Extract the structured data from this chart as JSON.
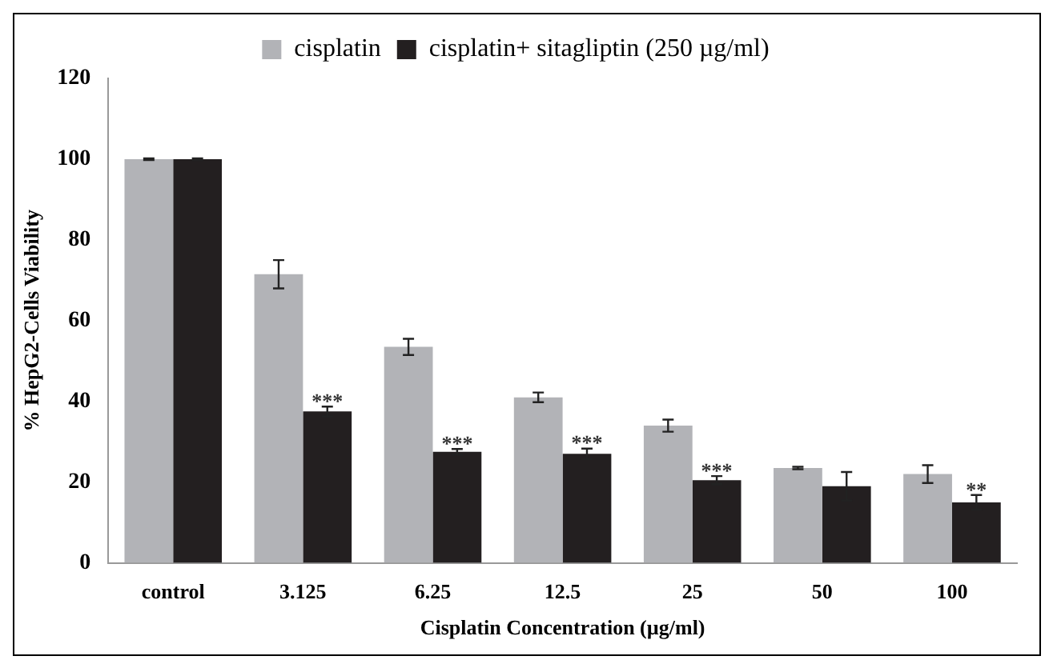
{
  "chart_data": {
    "type": "bar",
    "xlabel": "Cisplatin Concentration (µg/ml)",
    "ylabel": "% HepG2-Cells Viability",
    "categories": [
      "control",
      "3.125",
      "6.25",
      "12.5",
      "25",
      "50",
      "100"
    ],
    "series": [
      {
        "name": "cisplatin",
        "color": "#b2b3b7",
        "values": [
          100,
          71.5,
          53.5,
          41,
          34,
          23.5,
          22
        ],
        "errors": [
          0.2,
          3.5,
          2,
          1.2,
          1.5,
          0.3,
          2.2
        ]
      },
      {
        "name": "cisplatin+ sitagliptin (250 µg/ml)",
        "color": "#231f20",
        "values": [
          100,
          37.5,
          27.5,
          27,
          20.5,
          19,
          15
        ],
        "errors": [
          0.2,
          1.2,
          0.7,
          1.3,
          1,
          3.5,
          1.8
        ]
      }
    ],
    "ylim": [
      0,
      120
    ],
    "yticks": [
      0,
      20,
      40,
      60,
      80,
      100,
      120
    ],
    "grid": false,
    "legend": "top",
    "annotations": [
      {
        "text": "***",
        "x": "3.125",
        "y": 38.7
      },
      {
        "text": "***",
        "x": "6.25",
        "y": 28.2
      },
      {
        "text": "***",
        "x": "12.5",
        "y": 28.3
      },
      {
        "text": "***",
        "x": "25",
        "y": 21.5
      },
      {
        "text": "**",
        "x": "100",
        "y": 16.8
      }
    ]
  }
}
